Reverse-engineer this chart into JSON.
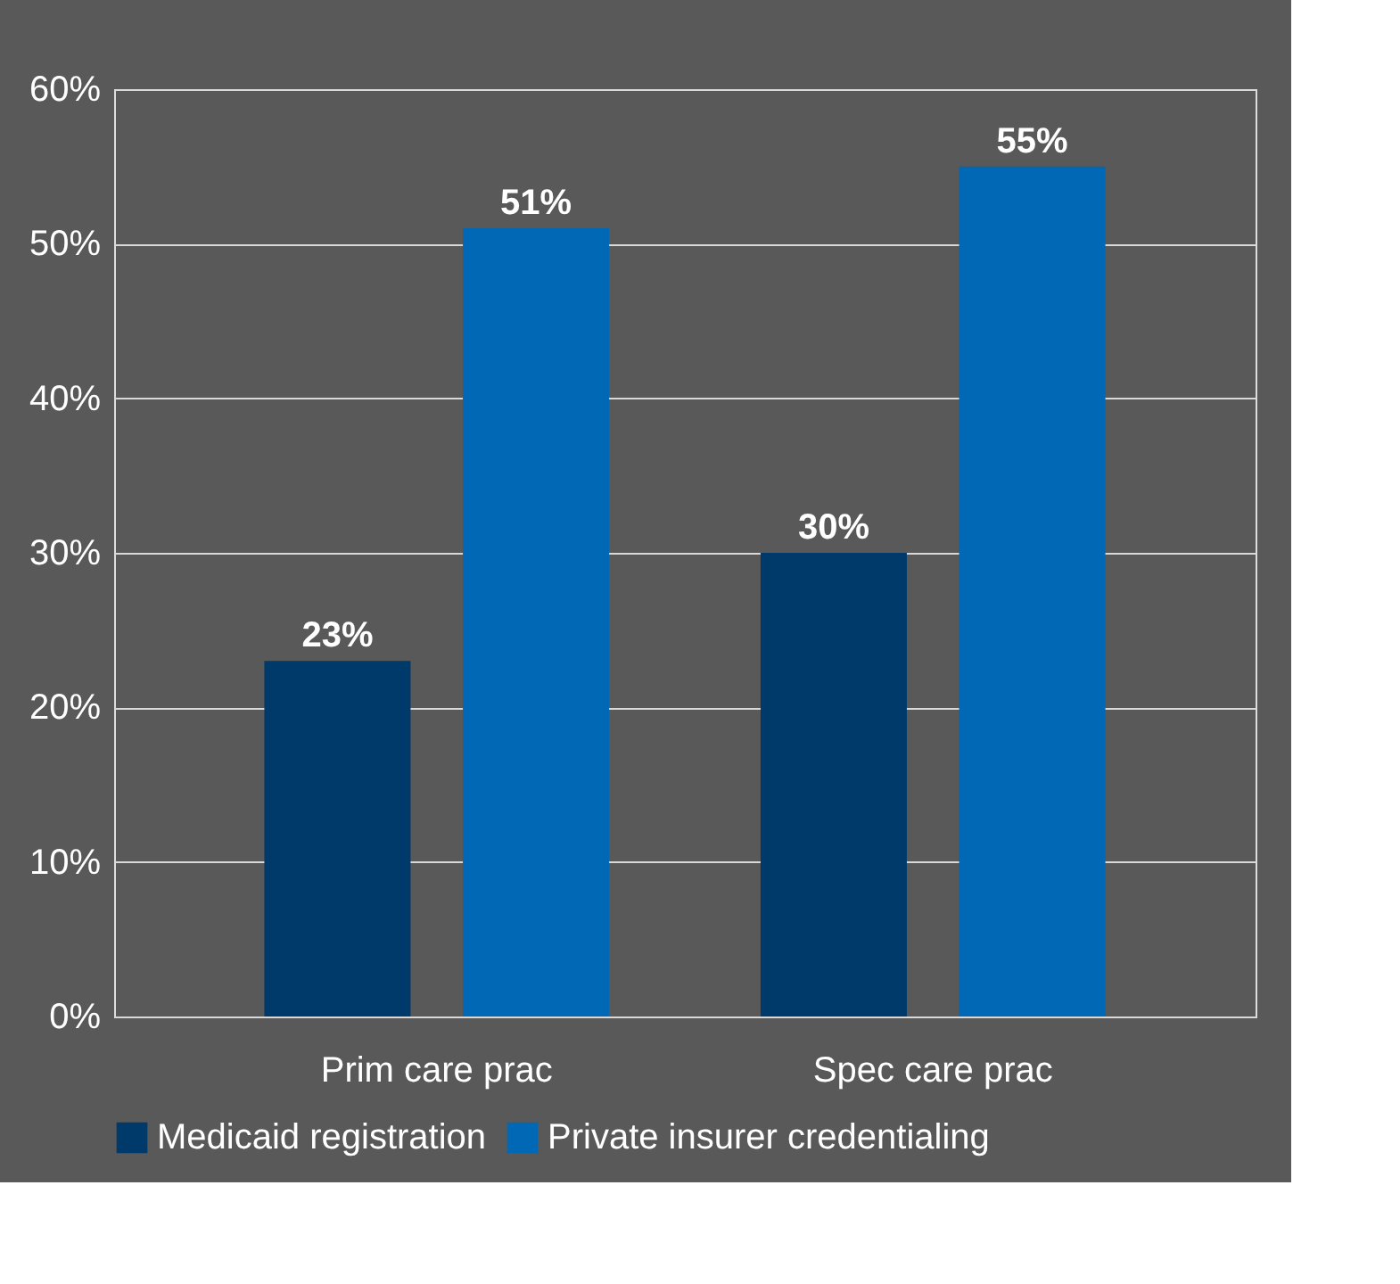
{
  "chart_data": {
    "type": "bar",
    "categories": [
      "Prim care prac",
      "Spec care prac"
    ],
    "series": [
      {
        "name": "Medicaid registration",
        "color": "#003a6b",
        "values": [
          23,
          30
        ],
        "value_labels": [
          "23%",
          "30%"
        ]
      },
      {
        "name": "Private insurer credentialing",
        "color": "#0068b5",
        "values": [
          51,
          55
        ],
        "value_labels": [
          "51%",
          "55%"
        ]
      }
    ],
    "ylim": [
      0,
      60
    ],
    "yticks": [
      {
        "value": 0,
        "label": "0%"
      },
      {
        "value": 10,
        "label": "10%"
      },
      {
        "value": 20,
        "label": "20%"
      },
      {
        "value": 30,
        "label": "30%"
      },
      {
        "value": 40,
        "label": "40%"
      },
      {
        "value": 50,
        "label": "50%"
      },
      {
        "value": 60,
        "label": "60%"
      }
    ],
    "grid": "y",
    "legend": "bottom"
  }
}
